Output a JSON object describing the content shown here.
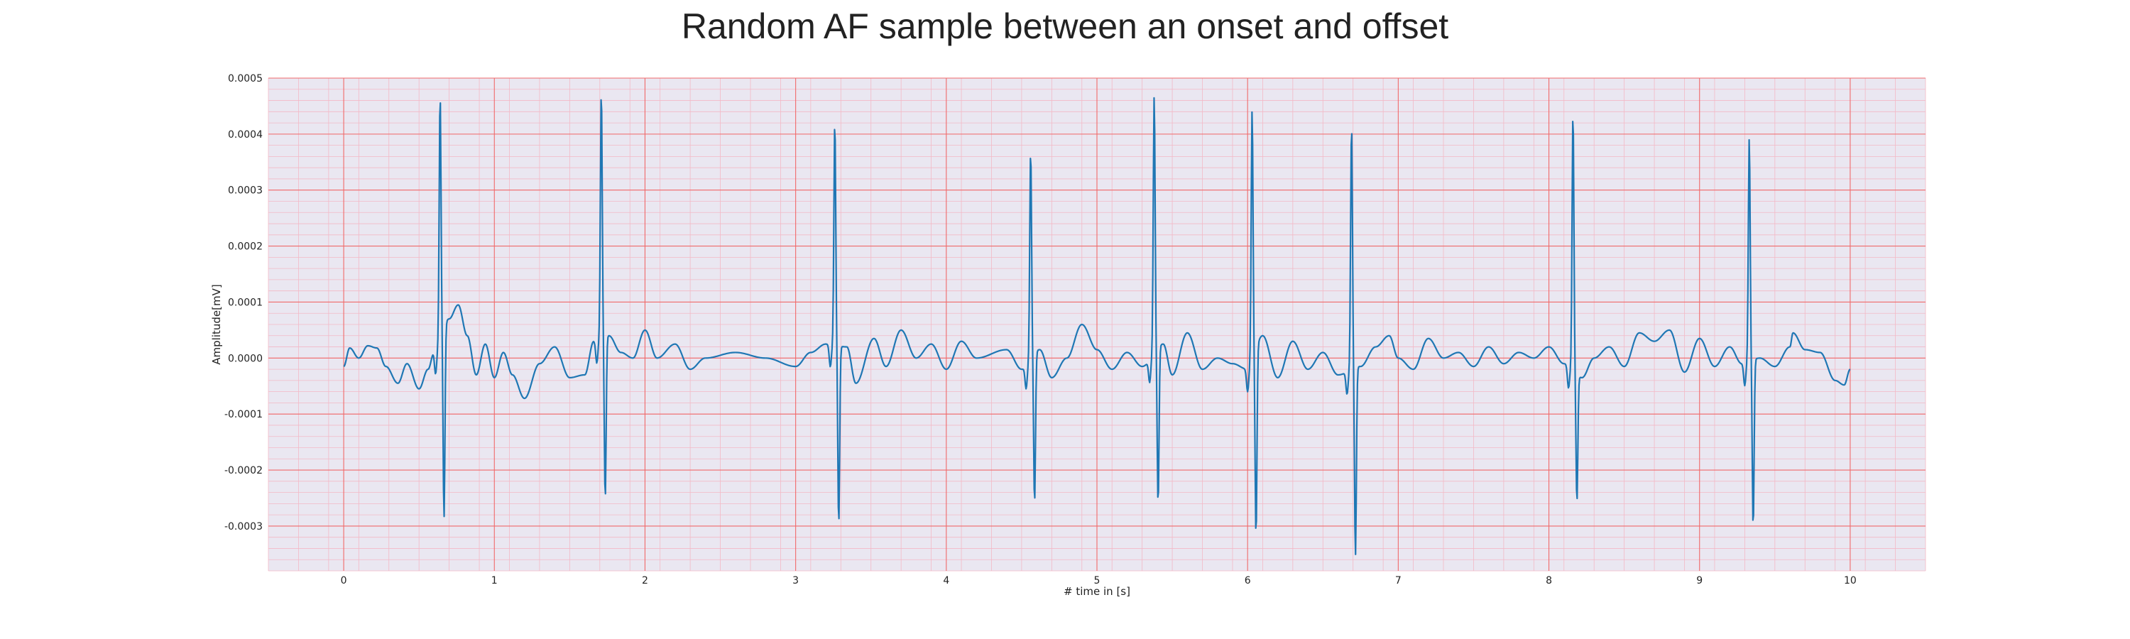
{
  "chart_data": {
    "type": "line",
    "title": "Random AF sample between an onset and offset",
    "xlabel": "# time in [s]",
    "ylabel": "Amplitude[mV]",
    "xlim": [
      -0.5,
      10.5
    ],
    "ylim": [
      -0.00038,
      0.0005
    ],
    "x_ticks": [
      "0",
      "1",
      "2",
      "3",
      "4",
      "5",
      "6",
      "7",
      "8",
      "9",
      "10"
    ],
    "y_ticks": [
      "0.0005",
      "0.0004",
      "0.0003",
      "0.0002",
      "0.0001",
      "0.0000",
      "-0.0001",
      "-0.0002",
      "-0.0003"
    ],
    "grid": true,
    "series": [
      {
        "color": "#1f77b4",
        "beats": [
          {
            "t": 0.64,
            "peak": 0.00044,
            "trough": -0.00034
          },
          {
            "t": 1.71,
            "peak": 0.000443,
            "trough": -0.00029
          },
          {
            "t": 3.26,
            "peak": 0.0004,
            "trough": -0.000318
          },
          {
            "t": 4.56,
            "peak": 0.000374,
            "trough": -0.000267
          },
          {
            "t": 5.38,
            "peak": 0.00046,
            "trough": -0.00028
          },
          {
            "t": 6.03,
            "peak": 0.000452,
            "trough": -0.000333
          },
          {
            "t": 6.69,
            "peak": 0.000437,
            "trough": -0.000336
          },
          {
            "t": 8.16,
            "peak": 0.000462,
            "trough": -0.000227
          },
          {
            "t": 9.33,
            "peak": 0.0004,
            "trough": -0.0003
          }
        ],
        "baseline": [
          [
            0.0,
            -1.5e-05
          ],
          [
            0.04,
            1.8e-05
          ],
          [
            0.1,
            0.0
          ],
          [
            0.16,
            2.2e-05
          ],
          [
            0.22,
            1.8e-05
          ],
          [
            0.28,
            -1.5e-05
          ],
          [
            0.36,
            -4.5e-05
          ],
          [
            0.42,
            -1e-05
          ],
          [
            0.5,
            -5.5e-05
          ],
          [
            0.56,
            -2e-05
          ],
          [
            0.6,
            1e-05
          ],
          [
            0.7,
            7e-05
          ],
          [
            0.76,
            9.5e-05
          ],
          [
            0.82,
            4e-05
          ],
          [
            0.88,
            -3e-05
          ],
          [
            0.94,
            2.5e-05
          ],
          [
            1.0,
            -3.5e-05
          ],
          [
            1.06,
            1e-05
          ],
          [
            1.12,
            -3e-05
          ],
          [
            1.2,
            -7.2e-05
          ],
          [
            1.3,
            -1e-05
          ],
          [
            1.4,
            2e-05
          ],
          [
            1.5,
            -3.5e-05
          ],
          [
            1.6,
            -3e-05
          ],
          [
            1.66,
            3e-05
          ],
          [
            1.76,
            4e-05
          ],
          [
            1.84,
            1e-05
          ],
          [
            1.92,
            0.0
          ],
          [
            2.0,
            5e-05
          ],
          [
            2.08,
            0.0
          ],
          [
            2.2,
            2.5e-05
          ],
          [
            2.3,
            -2e-05
          ],
          [
            2.4,
            0.0
          ],
          [
            2.6,
            1e-05
          ],
          [
            2.8,
            0.0
          ],
          [
            3.0,
            -1.5e-05
          ],
          [
            3.1,
            1e-05
          ],
          [
            3.2,
            2.5e-05
          ],
          [
            3.34,
            2e-05
          ],
          [
            3.4,
            -4.5e-05
          ],
          [
            3.52,
            3.5e-05
          ],
          [
            3.6,
            -1.5e-05
          ],
          [
            3.7,
            5e-05
          ],
          [
            3.8,
            0.0
          ],
          [
            3.9,
            2.5e-05
          ],
          [
            4.0,
            -2e-05
          ],
          [
            4.1,
            3e-05
          ],
          [
            4.2,
            0.0
          ],
          [
            4.4,
            1.5e-05
          ],
          [
            4.5,
            -2e-05
          ],
          [
            4.62,
            1.5e-05
          ],
          [
            4.7,
            -3.5e-05
          ],
          [
            4.8,
            0.0
          ],
          [
            4.9,
            6e-05
          ],
          [
            5.0,
            1.5e-05
          ],
          [
            5.1,
            -2e-05
          ],
          [
            5.2,
            1e-05
          ],
          [
            5.3,
            -1.5e-05
          ],
          [
            5.44,
            2.5e-05
          ],
          [
            5.5,
            -3e-05
          ],
          [
            5.6,
            4.5e-05
          ],
          [
            5.7,
            -2e-05
          ],
          [
            5.8,
            0.0
          ],
          [
            5.9,
            -1e-05
          ],
          [
            6.0,
            -2e-05
          ],
          [
            6.1,
            4e-05
          ],
          [
            6.2,
            -3.5e-05
          ],
          [
            6.3,
            3e-05
          ],
          [
            6.4,
            -2e-05
          ],
          [
            6.5,
            1e-05
          ],
          [
            6.6,
            -3e-05
          ],
          [
            6.75,
            -1.5e-05
          ],
          [
            6.85,
            2e-05
          ],
          [
            6.94,
            4e-05
          ],
          [
            7.0,
            0.0
          ],
          [
            7.1,
            -2e-05
          ],
          [
            7.2,
            3.5e-05
          ],
          [
            7.3,
            0.0
          ],
          [
            7.4,
            1e-05
          ],
          [
            7.5,
            -1.5e-05
          ],
          [
            7.6,
            2e-05
          ],
          [
            7.7,
            -1e-05
          ],
          [
            7.8,
            1e-05
          ],
          [
            7.9,
            0.0
          ],
          [
            8.0,
            2e-05
          ],
          [
            8.1,
            -1e-05
          ],
          [
            8.22,
            -3.5e-05
          ],
          [
            8.3,
            0.0
          ],
          [
            8.4,
            2e-05
          ],
          [
            8.5,
            -1.5e-05
          ],
          [
            8.6,
            4.5e-05
          ],
          [
            8.7,
            3e-05
          ],
          [
            8.8,
            5e-05
          ],
          [
            8.9,
            -2.5e-05
          ],
          [
            9.0,
            3.5e-05
          ],
          [
            9.1,
            -1.5e-05
          ],
          [
            9.2,
            2e-05
          ],
          [
            9.28,
            -1e-05
          ],
          [
            9.4,
            0.0
          ],
          [
            9.5,
            -1.5e-05
          ],
          [
            9.6,
            2e-05
          ],
          [
            9.62,
            4.5e-05
          ],
          [
            9.7,
            1.5e-05
          ],
          [
            9.8,
            1e-05
          ],
          [
            9.9,
            -4e-05
          ],
          [
            9.96,
            -4.8e-05
          ],
          [
            10.0,
            -2e-05
          ]
        ]
      }
    ]
  }
}
